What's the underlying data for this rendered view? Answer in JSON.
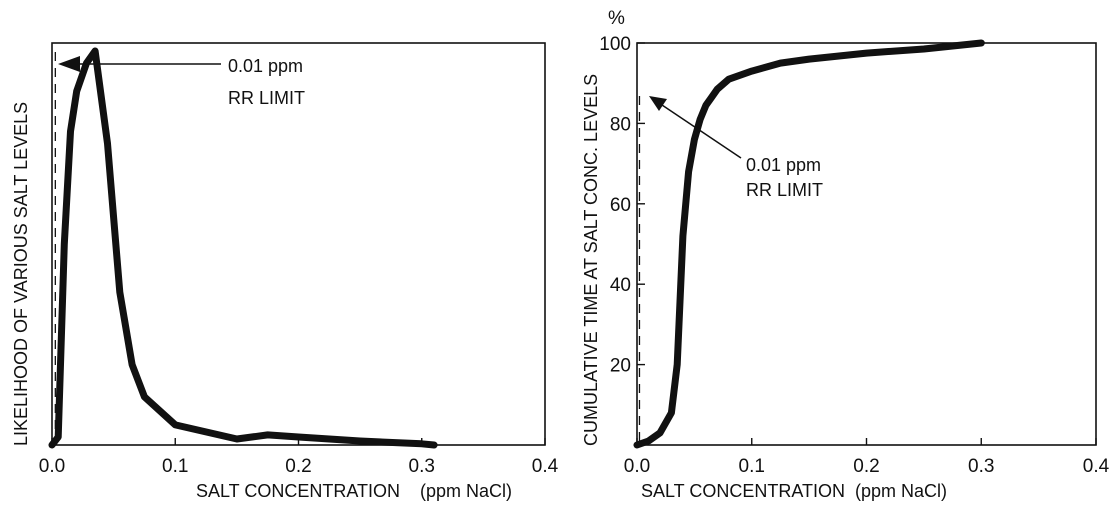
{
  "chart_data": [
    {
      "type": "line",
      "title": "",
      "xlabel": "SALT CONCENTRATION    (ppm NaCl)",
      "ylabel": "LIKELIHOOD OF VARIOUS SALT LEVELS",
      "xlim": [
        0,
        0.4
      ],
      "ylim": [
        0,
        100
      ],
      "x_ticks": [
        "0.0",
        "0.1",
        "0.2",
        "0.3",
        "0.4"
      ],
      "y_ticks": [],
      "series": [
        {
          "x": [
            0.0,
            0.005,
            0.01,
            0.015,
            0.02,
            0.028,
            0.035,
            0.045,
            0.055,
            0.065,
            0.075,
            0.1,
            0.15,
            0.175,
            0.2,
            0.25,
            0.3,
            0.31
          ],
          "y": [
            0,
            2,
            50,
            78,
            88,
            95,
            98,
            75,
            38,
            20,
            12,
            5,
            1.5,
            2.5,
            2,
            1,
            0.3,
            0
          ]
        }
      ],
      "limit_line_x": 0.01,
      "annotation": [
        "0.01 ppm",
        "RR  LIMIT"
      ],
      "grid": false
    },
    {
      "type": "line",
      "title": "",
      "xlabel": "SALT CONCENTRATION  (ppm NaCl)",
      "ylabel": "CUMULATIVE TIME AT SALT CONC. LEVELS",
      "y_unit": "%",
      "xlim": [
        0,
        0.4
      ],
      "ylim": [
        0,
        100
      ],
      "x_ticks": [
        "0.0",
        "0.1",
        "0.2",
        "0.3",
        "0.4"
      ],
      "y_ticks": [
        "20",
        "40",
        "60",
        "80",
        "100"
      ],
      "series": [
        {
          "x": [
            0.0,
            0.01,
            0.02,
            0.03,
            0.035,
            0.04,
            0.045,
            0.05,
            0.055,
            0.06,
            0.065,
            0.07,
            0.08,
            0.1,
            0.125,
            0.15,
            0.2,
            0.25,
            0.3
          ],
          "y": [
            0,
            1,
            3,
            8,
            20,
            52,
            68,
            76,
            81,
            84.5,
            86.5,
            88.5,
            91,
            93,
            95,
            96,
            97.5,
            98.5,
            100
          ]
        }
      ],
      "limit_line_x": 0.01,
      "annotation": [
        "0.01 ppm",
        "RR  LIMIT"
      ],
      "grid": false
    }
  ]
}
